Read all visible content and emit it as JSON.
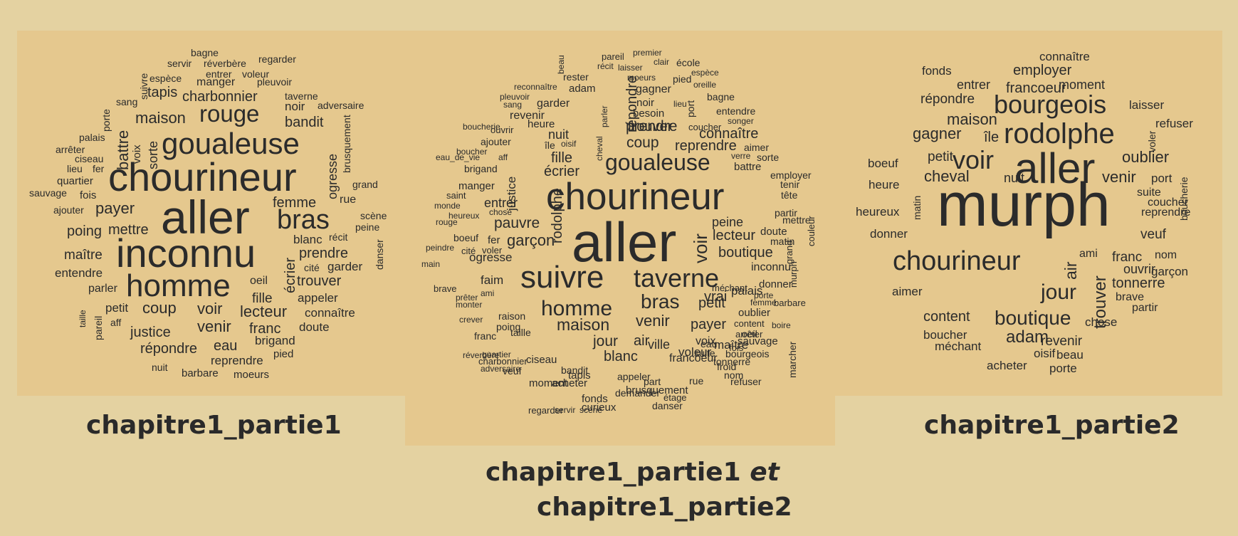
{
  "captions": {
    "left": "chapitre1_partie1",
    "middle_line1_prefix": "chapitre1_partie1",
    "middle_line1_conj": "et",
    "middle_line2": "chapitre1_partie2",
    "right": "chapitre1_partie2"
  },
  "colors": {
    "background": "#e4d2a1",
    "panel": "#e5c88e",
    "text": "#2b2b2b"
  },
  "clouds": {
    "left": [
      "bagne",
      "servir",
      "réverbère",
      "regarder",
      "espèce",
      "entrer",
      "voleur",
      "suivre",
      "manger",
      "pleuvoir",
      "tapis",
      "charbonnier",
      "taverne",
      "sang",
      "adversaire",
      "noir",
      "porte",
      "rouge",
      "maison",
      "bandit",
      "battre",
      "palais",
      "goualeuse",
      "voix",
      "sorte",
      "brusquement",
      "arrêter",
      "ciseau",
      "lieu",
      "fer",
      "chourineur",
      "ogresse",
      "quartier",
      "grand",
      "sauvage",
      "fois",
      "aller",
      "femme",
      "ajouter",
      "payer",
      "scène",
      "rue",
      "bras",
      "peine",
      "mettre",
      "poing",
      "récit",
      "blanc",
      "danser",
      "maître",
      "inconnu",
      "prendre",
      "entendre",
      "cité",
      "garder",
      "homme",
      "écrier",
      "trouver",
      "oeil",
      "taille",
      "parler",
      "appeler",
      "fille",
      "pareil",
      "petit",
      "coup",
      "voir",
      "lecteur",
      "connaître",
      "aff",
      "venir",
      "franc",
      "doute",
      "justice",
      "brigand",
      "eau",
      "répondre",
      "pied",
      "reprendre",
      "nuit",
      "barbare",
      "moeurs"
    ],
    "middle": [
      "beau",
      "pareil",
      "premier",
      "récit",
      "laisser",
      "clair",
      "école",
      "rester",
      "moeurs",
      "pied",
      "espèce",
      "adam",
      "répondre",
      "reconnaître",
      "oreille",
      "gagner",
      "pleuvoir",
      "sang",
      "garder",
      "bagne",
      "noir",
      "lieu",
      "port",
      "besoin",
      "revenir",
      "parler",
      "entendre",
      "heure",
      "trouver",
      "boucherie",
      "ouvrir",
      "prendre",
      "coucher",
      "songer",
      "nuit",
      "cheval",
      "connaître",
      "ajouter",
      "île",
      "oisif",
      "coup",
      "reprendre",
      "aimer",
      "boucher",
      "fille",
      "eau_de_vie",
      "aff",
      "verre",
      "sorte",
      "goualeuse",
      "brigand",
      "battre",
      "écrier",
      "employer",
      "justice",
      "manger",
      "rodolphe",
      "tenir",
      "saint",
      "chourineur",
      "entrer",
      "tête",
      "monde",
      "chose",
      "partir",
      "heureux",
      "rouge",
      "mettre",
      "pauvre",
      "peine",
      "aller",
      "boeuf",
      "fer",
      "garçon",
      "doute",
      "lecteur",
      "couleur",
      "matin",
      "peindre",
      "cité",
      "voler",
      "ogresse",
      "voir",
      "boutique",
      "main",
      "grand",
      "taverne",
      "inconnu",
      "suivre",
      "murph",
      "faim",
      "donner",
      "brave",
      "méchant",
      "palais",
      "ami",
      "porte",
      "vrai",
      "femme",
      "prêter",
      "petit",
      "barbare",
      "monter",
      "homme",
      "bras",
      "oublier",
      "crever",
      "content",
      "boire",
      "raison",
      "venir",
      "payer",
      "poing",
      "maison",
      "oeil",
      "taille",
      "marcher",
      "arrêter",
      "franc",
      "jour",
      "air",
      "voix",
      "eau",
      "maître",
      "sauvage",
      "ville",
      "fois",
      "voleur",
      "suite",
      "bourgeois",
      "réverbère",
      "quartier",
      "blanc",
      "francoeur",
      "froid",
      "ciseau",
      "charbonnier",
      "tonnerre",
      "veuf",
      "adversaire",
      "bandit",
      "tapis",
      "appeler",
      "nom",
      "part",
      "rue",
      "acheter",
      "moment",
      "refuser",
      "demander",
      "brusquement",
      "fonds",
      "danser",
      "étage",
      "servir",
      "scène",
      "regarder",
      "curieux"
    ],
    "right": [
      "connaître",
      "fonds",
      "employer",
      "entrer",
      "moment",
      "francoeur",
      "répondre",
      "laisser",
      "bourgeois",
      "maison",
      "voler",
      "refuser",
      "gagner",
      "île",
      "rodolphe",
      "petit",
      "oublier",
      "boeuf",
      "voir",
      "aller",
      "boucherie",
      "cheval",
      "nuit",
      "venir",
      "port",
      "heure",
      "matin",
      "suite",
      "murph",
      "coucher",
      "heureux",
      "reprendre",
      "donner",
      "veuf",
      "ami",
      "franc",
      "nom",
      "chourineur",
      "air",
      "garçon",
      "ouvrir",
      "tonnerre",
      "trouver",
      "aimer",
      "jour",
      "brave",
      "partir",
      "content",
      "boutique",
      "chose",
      "boucher",
      "adam",
      "méchant",
      "revenir",
      "oisif",
      "beau",
      "acheter",
      "porte"
    ]
  }
}
